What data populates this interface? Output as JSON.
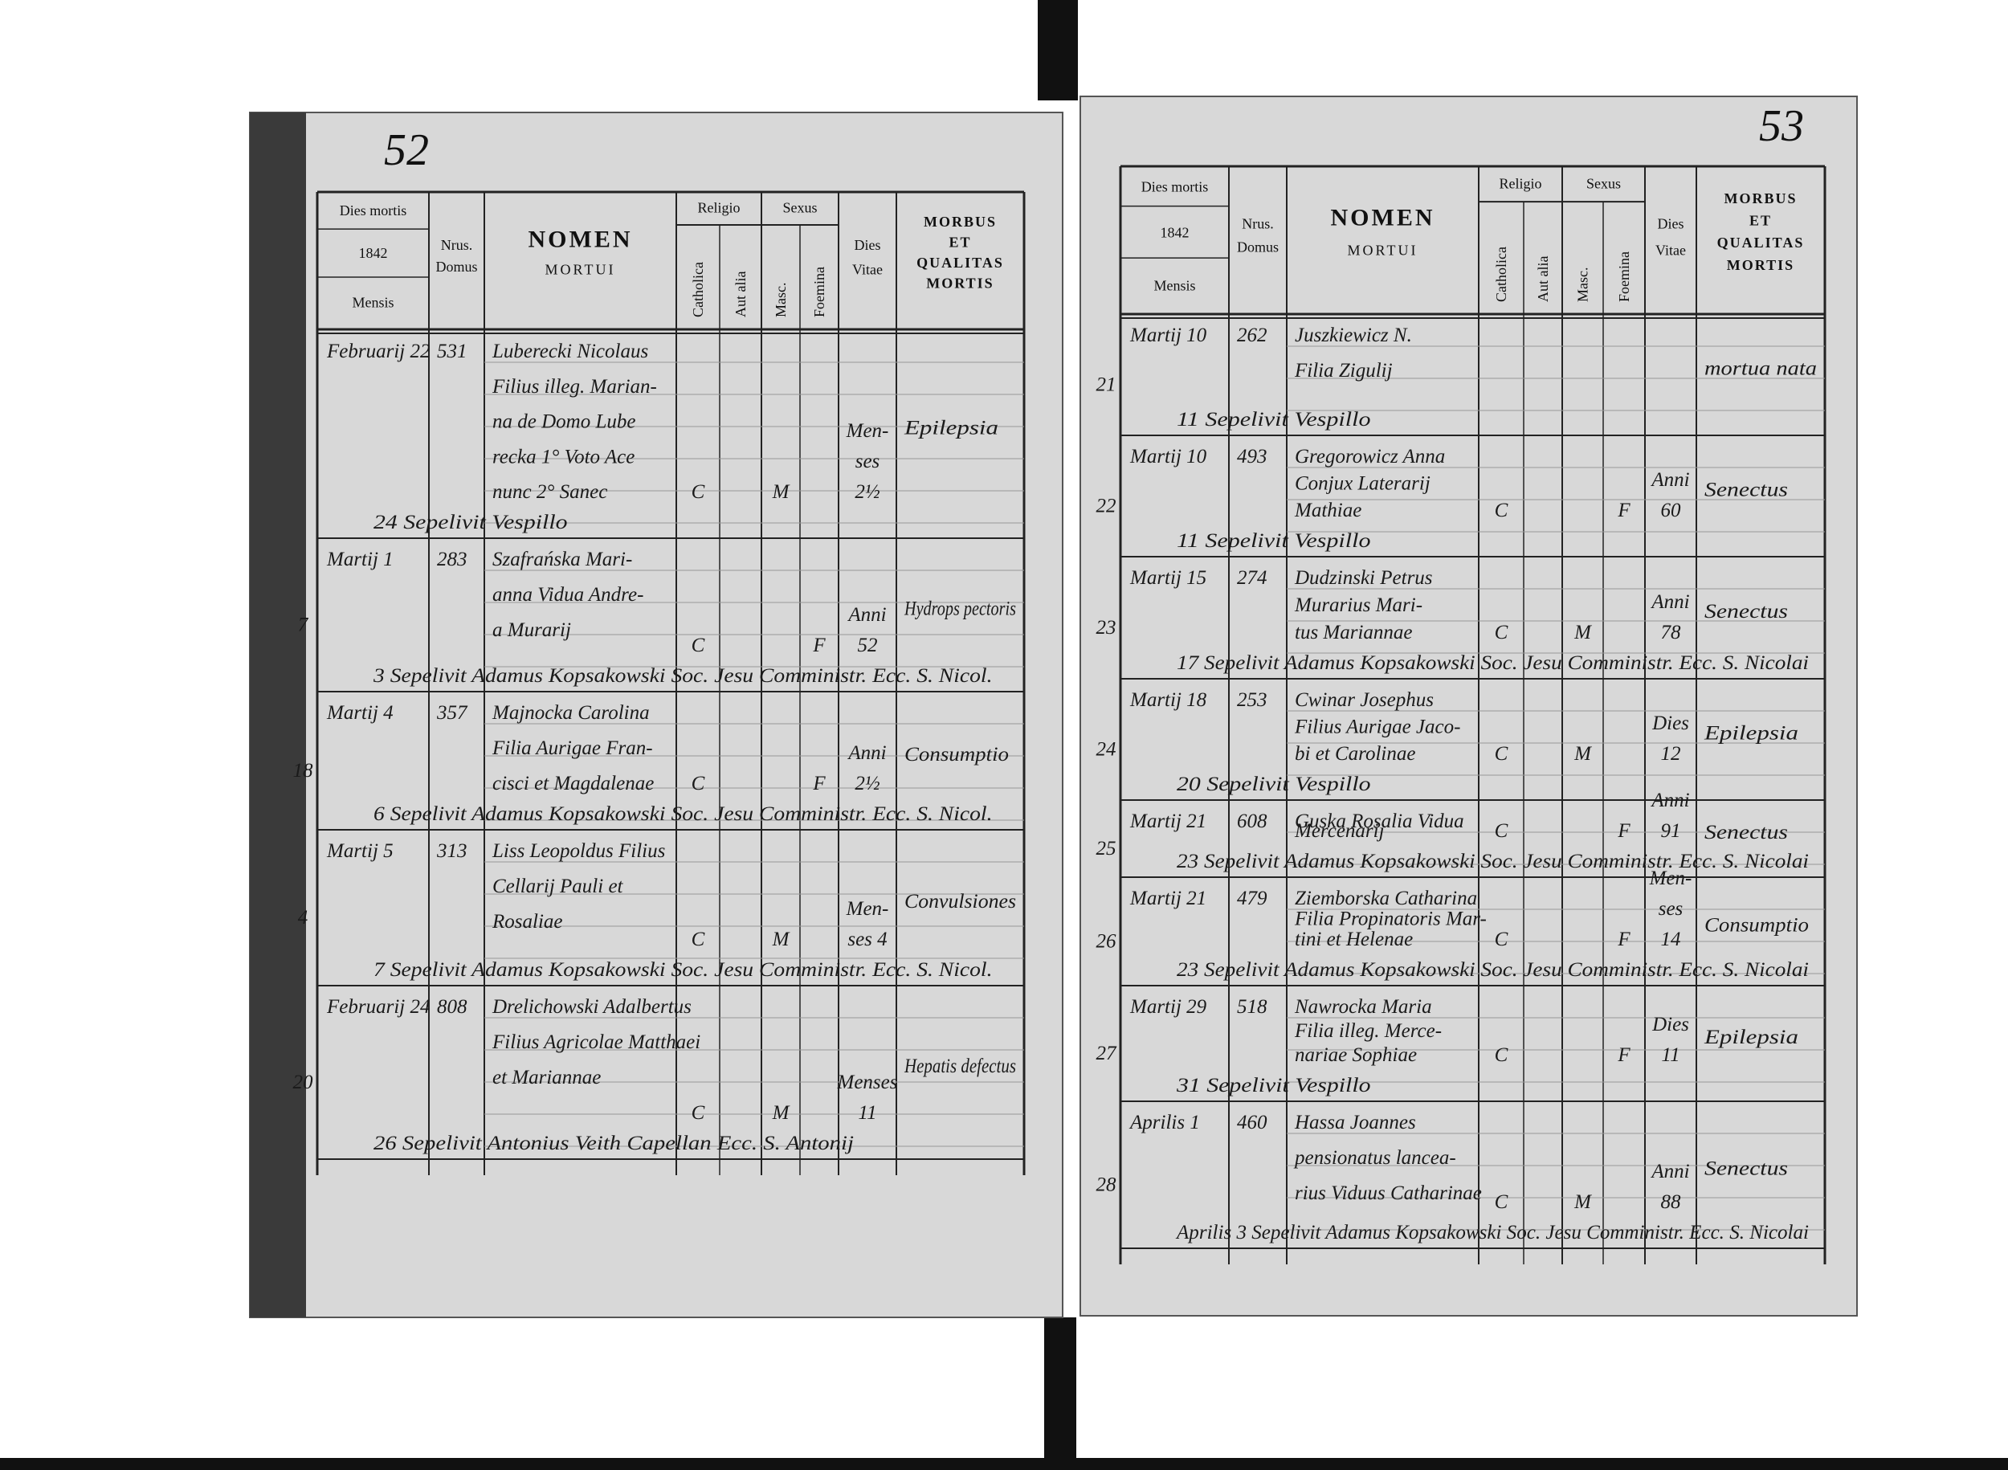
{
  "left_page": {
    "page_number": "52",
    "header": {
      "dies_mortis": "Dies mortis",
      "year": "1842",
      "mensis": "Mensis",
      "domus": [
        "Nrus.",
        "Domus"
      ],
      "nomen": "NOMEN",
      "mortui": "MORTUI",
      "religio": "Religio",
      "catholica": "Catholica",
      "aut_alia": "Aut alia",
      "sexus": "Sexus",
      "masc": "Masc.",
      "foemina": "Foemina",
      "vitae": [
        "Dies",
        "Vitae"
      ],
      "morbus": [
        "MORBUS",
        "ET",
        "QUALITAS",
        "MORTIS"
      ]
    },
    "entries": [
      {
        "date": "Februarij 22",
        "house": "531",
        "name": [
          "Luberecki Nicolaus",
          "Filius illeg. Marian-",
          "na de Domo Lube",
          "recka 1° Voto Ace",
          "nunc 2° Sanec"
        ],
        "religio": "C",
        "sex": "M",
        "age": [
          "Men-",
          "ses",
          "2½"
        ],
        "morbus": "Epilepsia",
        "burial": "24 Sepelivit Vespillo"
      },
      {
        "date": "Martij 1",
        "house": "283",
        "name": [
          "Szafrańska Mari-",
          "anna Vidua Andre-",
          "a Murarij"
        ],
        "religio": "C",
        "sex": "F",
        "age": [
          "Anni",
          "52"
        ],
        "morbus": "Hydrops pectoris",
        "burial": "3 Sepelivit Adamus Kopsakowski Soc. Jesu Comministr. Ecc. S. Nicol.",
        "margin": "7"
      },
      {
        "date": "Martij 4",
        "house": "357",
        "name": [
          "Majnocka Carolina",
          "Filia Aurigae Fran-",
          "cisci et Magdalenae"
        ],
        "religio": "C",
        "sex": "F",
        "age": [
          "Anni",
          "2½"
        ],
        "morbus": "Consumptio",
        "burial": "6 Sepelivit Adamus Kopsakowski Soc. Jesu Comministr. Ecc. S. Nicol.",
        "margin": "18"
      },
      {
        "date": "Martij 5",
        "house": "313",
        "name": [
          "Liss Leopoldus Filius",
          "Cellarij Pauli et",
          "Rosaliae"
        ],
        "religio": "C",
        "sex": "M",
        "age": [
          "Men-",
          "ses 4"
        ],
        "morbus": "Convulsiones",
        "burial": "7 Sepelivit Adamus Kopsakowski Soc. Jesu Comministr. Ecc. S. Nicol.",
        "margin": "4"
      },
      {
        "date": "Februarij 24",
        "house": "808",
        "name": [
          "Drelichowski Adalbertus",
          "Filius Agricolae Matthaei",
          "et Mariannae"
        ],
        "religio": "C",
        "sex": "M",
        "age": [
          "Menses",
          "11"
        ],
        "morbus": "Hepatis defectus",
        "burial": "26 Sepelivit Antonius Veith Capellan Ecc. S. Antonij",
        "margin": "20"
      }
    ]
  },
  "right_page": {
    "page_number": "53",
    "header": {
      "dies_mortis": "Dies mortis",
      "year": "1842",
      "mensis": "Mensis",
      "domus": [
        "Nrus.",
        "Domus"
      ],
      "nomen": "NOMEN",
      "mortui": "MORTUI",
      "religio": "Religio",
      "catholica": "Catholica",
      "aut_alia": "Aut alia",
      "sexus": "Sexus",
      "masc": "Masc.",
      "foemina": "Foemina",
      "vitae": [
        "Dies",
        "Vitae"
      ],
      "morbus": [
        "MORBUS",
        "ET",
        "QUALITAS",
        "MORTIS"
      ]
    },
    "entries": [
      {
        "date": "Martij 10",
        "house": "262",
        "name": [
          "Juszkiewicz N.",
          "Filia Zigulij"
        ],
        "age": [],
        "morbus": "mortua nata",
        "burial": "11 Sepelivit Vespillo",
        "margin": "21"
      },
      {
        "date": "Martij 10",
        "house": "493",
        "name": [
          "Gregorowicz Anna",
          "Conjux Laterarij",
          "Mathiae"
        ],
        "religio": "C",
        "sex": "F",
        "age": [
          "Anni",
          "60"
        ],
        "morbus": "Senectus",
        "burial": "11 Sepelivit Vespillo",
        "margin": "22"
      },
      {
        "date": "Martij 15",
        "house": "274",
        "name": [
          "Dudzinski Petrus",
          "Murarius Mari-",
          "tus Mariannae"
        ],
        "religio": "C",
        "sex": "M",
        "age": [
          "Anni",
          "78"
        ],
        "morbus": "Senectus",
        "burial": "17 Sepelivit Adamus Kopsakowski Soc. Jesu Comministr. Ecc. S. Nicolai",
        "margin": "23"
      },
      {
        "date": "Martij 18",
        "house": "253",
        "name": [
          "Cwinar Josephus",
          "Filius Aurigae Jaco-",
          "bi et Carolinae"
        ],
        "religio": "C",
        "sex": "M",
        "age": [
          "Dies",
          "12"
        ],
        "morbus": "Epilepsia",
        "burial": "20 Sepelivit Vespillo",
        "margin": "24"
      },
      {
        "date": "Martij 21",
        "house": "608",
        "name": [
          "Guska Rosalia Vidua",
          "Mercenarij"
        ],
        "religio": "C",
        "sex": "F",
        "age": [
          "Anni",
          "91"
        ],
        "morbus": "Senectus",
        "burial": "23 Sepelivit Adamus Kopsakowski Soc. Jesu Comministr. Ecc. S. Nicolai",
        "margin": "25"
      },
      {
        "date": "Martij 21",
        "house": "479",
        "name": [
          "Ziemborska Catharina",
          "Filia Propinatoris Mar-",
          "tini et Helenae"
        ],
        "religio": "C",
        "sex": "F",
        "age": [
          "Men-",
          "ses",
          "14"
        ],
        "morbus": "Consumptio",
        "burial": "23 Sepelivit Adamus Kopsakowski Soc. Jesu Comministr. Ecc. S. Nicolai",
        "margin": "26"
      },
      {
        "date": "Martij 29",
        "house": "518",
        "name": [
          "Nawrocka Maria",
          "Filia illeg. Merce-",
          "nariae Sophiae"
        ],
        "religio": "C",
        "sex": "F",
        "age": [
          "Dies",
          "11"
        ],
        "morbus": "Epilepsia",
        "burial": "31 Sepelivit Vespillo",
        "margin": "27"
      },
      {
        "date": "Aprilis 1",
        "house": "460",
        "name": [
          "Hassa Joannes",
          "pensionatus lancea-",
          "rius Viduus Catharinae"
        ],
        "religio": "C",
        "sex": "M",
        "age": [
          "Anni",
          "88"
        ],
        "morbus": "Senectus",
        "burial": "Aprilis 3 Sepelivit Adamus Kopsakowski Soc. Jesu Comministr. Ecc. S. Nicolai",
        "margin": "28"
      }
    ]
  }
}
